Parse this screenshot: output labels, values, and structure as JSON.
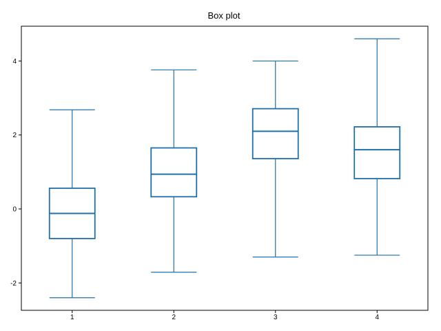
{
  "chart_data": {
    "type": "box",
    "title": "Box plot",
    "xlabel": "",
    "ylabel": "",
    "categories": [
      "1",
      "2",
      "3",
      "4"
    ],
    "boxes": [
      {
        "category": "1",
        "whisker_low": -2.4,
        "q1": -0.8,
        "median": -0.12,
        "q3": 0.56,
        "whisker_high": 2.68
      },
      {
        "category": "2",
        "whisker_low": -1.71,
        "q1": 0.33,
        "median": 0.94,
        "q3": 1.65,
        "whisker_high": 3.76
      },
      {
        "category": "3",
        "whisker_low": -1.3,
        "q1": 1.36,
        "median": 2.1,
        "q3": 2.71,
        "whisker_high": 4.0
      },
      {
        "category": "4",
        "whisker_low": -1.25,
        "q1": 0.82,
        "median": 1.6,
        "q3": 2.22,
        "whisker_high": 4.6
      }
    ],
    "y_ticks": [
      -2,
      0,
      2,
      4
    ],
    "ylim": [
      -2.74,
      4.94
    ],
    "xlim": [
      0.5,
      4.5
    ],
    "grid": false,
    "legend": "none",
    "color": "#1f6fa9"
  }
}
